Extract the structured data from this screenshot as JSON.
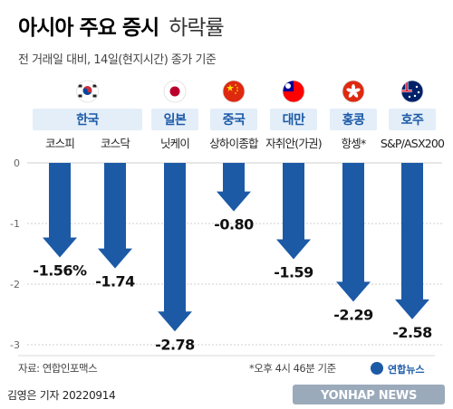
{
  "header": {
    "title_bold": "아시아 주요 증시",
    "title_light": "하락률",
    "subtitle": "전 거래일 대비, 14일(현지시간) 종가 기준"
  },
  "footer": {
    "source": "자료: 연합인포맥스",
    "note": "*오후 4시 46분 기준",
    "byline": "김영은 기자  20220914",
    "logo_kr": "연합뉴스",
    "logo_en": "YONHAP NEWS"
  },
  "colors": {
    "arrow": "#1c5aa6",
    "country_label": "#1c5aa6",
    "band": "#e3eef9",
    "grid": "#cfcfcf"
  },
  "chart_data": {
    "type": "bar",
    "title": "아시아 주요 증시 하락률",
    "ylim": [
      -3,
      0
    ],
    "yticks": [
      0,
      -1,
      -2,
      -3
    ],
    "ytick_labels": [
      "0",
      "-1",
      "-2",
      "-3"
    ],
    "groups": [
      {
        "country": "한국",
        "flag": "korea-flag-icon",
        "indices": [
          0,
          1
        ]
      },
      {
        "country": "일본",
        "flag": "japan-flag-icon",
        "indices": [
          2
        ]
      },
      {
        "country": "중국",
        "flag": "china-flag-icon",
        "indices": [
          3
        ]
      },
      {
        "country": "대만",
        "flag": "taiwan-flag-icon",
        "indices": [
          4
        ]
      },
      {
        "country": "홍콩",
        "flag": "hongkong-flag-icon",
        "indices": [
          5
        ]
      },
      {
        "country": "호주",
        "flag": "australia-flag-icon",
        "indices": [
          6
        ]
      }
    ],
    "categories": [
      "코스피",
      "코스닥",
      "닛케이",
      "상하이종합",
      "자취안(가권)",
      "항셍*",
      "S&P/ASX200"
    ],
    "values": [
      -1.56,
      -1.74,
      -2.78,
      -0.8,
      -1.59,
      -2.29,
      -2.58
    ],
    "value_labels": [
      "-1.56%",
      "-1.74",
      "-2.78",
      "-0.80",
      "-1.59",
      "-2.29",
      "-2.58"
    ]
  }
}
